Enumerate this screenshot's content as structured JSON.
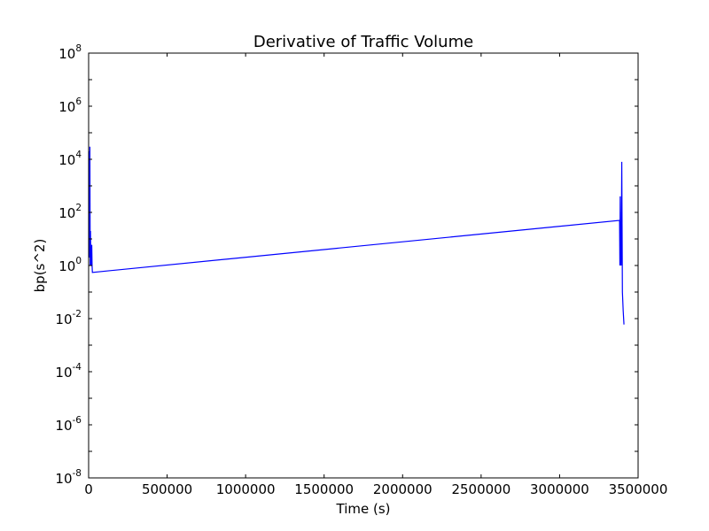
{
  "chart_data": {
    "type": "line",
    "title": "Derivative of Traffic Volume",
    "xlabel": "Time (s)",
    "ylabel": "bp(s^2)",
    "xlim": [
      0,
      3500000
    ],
    "ylim": [
      1e-08,
      100000000.0
    ],
    "yscale": "log",
    "grid": false,
    "legend": "none",
    "x_ticks": [
      {
        "value": 0,
        "label": "0"
      },
      {
        "value": 500000,
        "label": "500000"
      },
      {
        "value": 1000000,
        "label": "1000000"
      },
      {
        "value": 1500000,
        "label": "1500000"
      },
      {
        "value": 2000000,
        "label": "2000000"
      },
      {
        "value": 2500000,
        "label": "2500000"
      },
      {
        "value": 3000000,
        "label": "3000000"
      },
      {
        "value": 3500000,
        "label": "3500000"
      }
    ],
    "y_ticks": [
      {
        "value": 1e-08,
        "base": "10",
        "exp": "-8"
      },
      {
        "value": 1e-06,
        "base": "10",
        "exp": "-6"
      },
      {
        "value": 0.0001,
        "base": "10",
        "exp": "-4"
      },
      {
        "value": 0.01,
        "base": "10",
        "exp": "-2"
      },
      {
        "value": 1,
        "base": "10",
        "exp": "0"
      },
      {
        "value": 100,
        "base": "10",
        "exp": "2"
      },
      {
        "value": 10000,
        "base": "10",
        "exp": "4"
      },
      {
        "value": 1000000,
        "base": "10",
        "exp": "6"
      },
      {
        "value": 100000000,
        "base": "10",
        "exp": "8"
      }
    ],
    "series": [
      {
        "color": "#0000ff",
        "x": [
          2000,
          4000,
          6000,
          8000,
          10000,
          12000,
          14000,
          16000,
          18000,
          20000,
          22000,
          24000,
          3382000,
          3384000,
          3386000,
          3388000,
          3390000,
          3392000,
          3396000,
          3400000,
          3405000,
          3410000
        ],
        "y": [
          3000,
          20000,
          2,
          30000,
          1,
          20,
          1,
          5,
          1,
          6,
          1,
          0.55,
          50,
          1,
          400,
          1,
          20,
          1,
          8000,
          0.1,
          0.02,
          0.006
        ]
      }
    ]
  }
}
